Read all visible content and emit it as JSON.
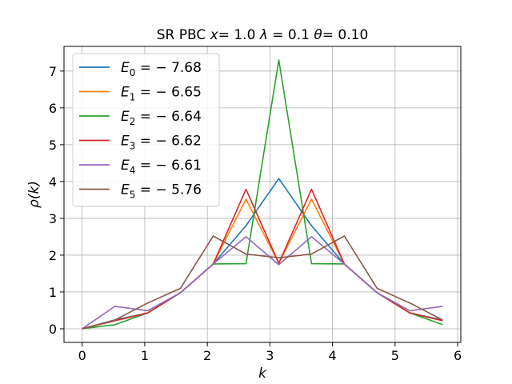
{
  "chart_data": {
    "type": "line",
    "title": "SR PBC x= 1.0 λ = 0.1 θ= 0.10",
    "xlabel": "k",
    "ylabel": "ρ(k)",
    "xlim": [
      -0.29,
      6.05
    ],
    "ylim": [
      -0.37,
      7.67
    ],
    "xticks": [
      0,
      1,
      2,
      3,
      4,
      5,
      6
    ],
    "yticks": [
      0,
      1,
      2,
      3,
      4,
      5,
      6,
      7
    ],
    "grid": true,
    "legend_position": "top-left",
    "x": [
      0,
      0.524,
      1.047,
      1.571,
      2.094,
      2.618,
      3.142,
      3.665,
      4.189,
      4.712,
      5.236,
      5.76
    ],
    "series": [
      {
        "name": "E0 = −7.68",
        "label_base": "E",
        "label_sub": "0",
        "label_rest": " = − 7.68",
        "color": "#1f77b4",
        "values": [
          0.0,
          0.24,
          0.43,
          0.98,
          1.76,
          2.8,
          4.08,
          2.8,
          1.76,
          0.98,
          0.43,
          0.24
        ]
      },
      {
        "name": "E1 = −6.65",
        "label_base": "E",
        "label_sub": "1",
        "label_rest": " = − 6.65",
        "color": "#ff7f0e",
        "values": [
          0.0,
          0.22,
          0.43,
          0.98,
          1.76,
          3.52,
          1.78,
          3.52,
          1.76,
          0.98,
          0.43,
          0.22
        ]
      },
      {
        "name": "E2 = −6.64",
        "label_base": "E",
        "label_sub": "2",
        "label_rest": " = − 6.64",
        "color": "#2ca02c",
        "values": [
          0.0,
          0.11,
          0.43,
          0.98,
          1.76,
          1.77,
          7.3,
          1.77,
          1.76,
          0.98,
          0.43,
          0.11
        ]
      },
      {
        "name": "E3 = −6.62",
        "label_base": "E",
        "label_sub": "3",
        "label_rest": " = − 6.62",
        "color": "#d62728",
        "values": [
          0.0,
          0.22,
          0.43,
          0.98,
          1.76,
          3.79,
          1.78,
          3.79,
          1.76,
          0.98,
          0.43,
          0.22
        ]
      },
      {
        "name": "E4 = −6.61",
        "label_base": "E",
        "label_sub": "4",
        "label_rest": " = − 6.61",
        "color": "#9467bd",
        "values": [
          0.0,
          0.61,
          0.49,
          0.98,
          1.76,
          2.5,
          1.74,
          2.5,
          1.76,
          0.98,
          0.49,
          0.61
        ]
      },
      {
        "name": "E5 = −5.76",
        "label_base": "E",
        "label_sub": "5",
        "label_rest": " = − 5.76",
        "color": "#8c564b",
        "values": [
          0.0,
          0.24,
          0.7,
          1.1,
          2.52,
          2.03,
          1.93,
          2.03,
          2.52,
          1.1,
          0.7,
          0.24
        ]
      }
    ]
  }
}
